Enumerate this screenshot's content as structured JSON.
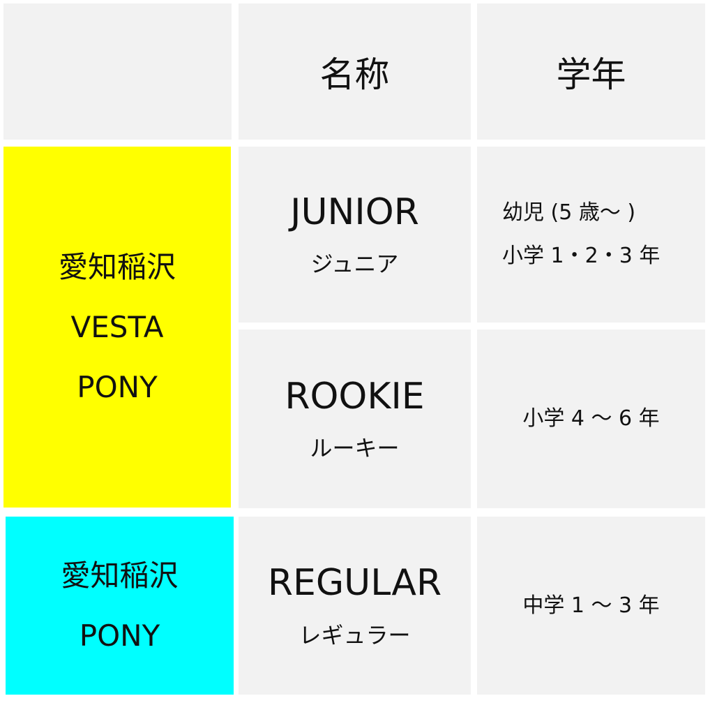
{
  "header": {
    "empty": "",
    "name": "名称",
    "grade": "学年"
  },
  "colors": {
    "vesta_pony": "#ffff00",
    "pony": "#00ffff",
    "cell": "#f2f2f2"
  },
  "groups": [
    {
      "lines": [
        "愛知稲沢",
        "VESTA",
        "PONY"
      ]
    },
    {
      "lines": [
        "愛知稲沢",
        "PONY"
      ]
    }
  ],
  "rows": [
    {
      "name_en": "JUNIOR",
      "name_jp": "ジュニア",
      "grade": [
        "幼児 (5 歳～ )",
        "小学 1・2・3 年"
      ]
    },
    {
      "name_en": "ROOKIE",
      "name_jp": "ルーキー",
      "grade": [
        "小学 4 ～ 6 年"
      ]
    },
    {
      "name_en": "REGULAR",
      "name_jp": "レギュラー",
      "grade": [
        "中学 1 ～ 3 年"
      ]
    }
  ]
}
